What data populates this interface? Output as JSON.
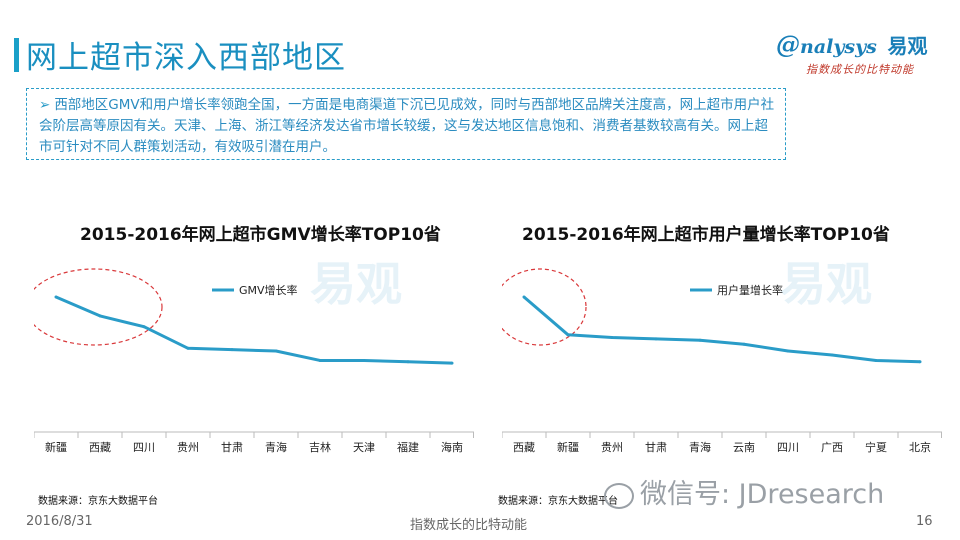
{
  "header": {
    "title": "网上超市深入西部地区",
    "logo_brand": "nalysys",
    "logo_cn": "易观",
    "logo_tagline": "指数成长的比特动能"
  },
  "summary": {
    "bullet": "➢",
    "text": "西部地区GMV和用户增长率领跑全国，一方面是电商渠道下沉已见成效，同时与西部地区品牌关注度高，网上超市用户社会阶层高等原因有关。天津、上海、浙江等经济发达省市增长较缓，这与发达地区信息饱和、消费者基数较高有关。网上超市可针对不同人群策划活动，有效吸引潜在用户。"
  },
  "chart_data": [
    {
      "type": "line",
      "title": "2015-2016年网上超市GMV增长率TOP10省",
      "categories": [
        "新疆",
        "西藏",
        "四川",
        "贵州",
        "甘肃",
        "青海",
        "吉林",
        "天津",
        "福建",
        "海南"
      ],
      "series": [
        {
          "name": "GMV增长率",
          "values": [
            100,
            86,
            78,
            62,
            61,
            60,
            53,
            53,
            52,
            51
          ]
        }
      ],
      "ylim": [
        0,
        120
      ],
      "legend": "top-center",
      "grid": false,
      "highlight": "circle-first-3",
      "source": "数据来源：京东大数据平台"
    },
    {
      "type": "line",
      "title": "2015-2016年网上超市用户量增长率TOP10省",
      "categories": [
        "西藏",
        "新疆",
        "贵州",
        "甘肃",
        "青海",
        "云南",
        "四川",
        "广西",
        "宁夏",
        "北京"
      ],
      "series": [
        {
          "name": "用户量增长率",
          "values": [
            100,
            72,
            70,
            69,
            68,
            65,
            60,
            57,
            53,
            52
          ]
        }
      ],
      "ylim": [
        0,
        120
      ],
      "legend": "top-center",
      "grid": false,
      "highlight": "circle-first-2",
      "source": "数据来源：京东大数据平台"
    }
  ],
  "watermark": {
    "cn": "易观",
    "en": "nalysys"
  },
  "wechat": "微信号: JDresearch",
  "footer": {
    "date": "2016/8/31",
    "slogan": "指数成长的比特动能",
    "page": "16"
  },
  "colors": {
    "line": "#2a9cc8",
    "title": "#1a8fc0",
    "circle": "#d9383a"
  }
}
